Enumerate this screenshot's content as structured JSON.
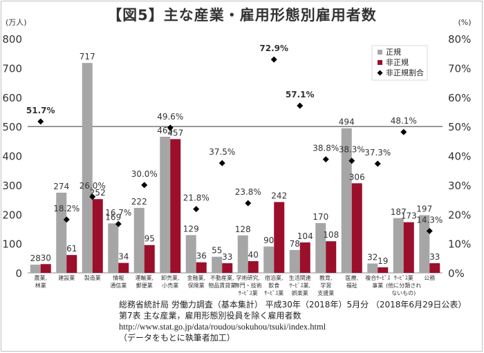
{
  "chart_data": {
    "type": "bar",
    "title": "【図5】主な産業・雇用形態別雇用者数",
    "y_left_unit": "(万人)",
    "y_right_unit": "(%)",
    "ylim": [
      0,
      800
    ],
    "y2lim": [
      0,
      80
    ],
    "y_ticks": [
      0,
      100,
      200,
      300,
      400,
      500,
      600,
      700,
      800
    ],
    "y2_ticks": [
      "0%",
      "10%",
      "20%",
      "30%",
      "40%",
      "50%",
      "60%",
      "70%",
      "80%"
    ],
    "reference_line": 500,
    "categories": [
      [
        "農業,",
        "林業"
      ],
      [
        "建設業"
      ],
      [
        "製造業"
      ],
      [
        "情報",
        "通信業"
      ],
      [
        "運輸業,",
        "郵便業"
      ],
      [
        "卸売業,",
        "小売業"
      ],
      [
        "金融業,",
        "保険業"
      ],
      [
        "不動産業,",
        "物品賃貸業"
      ],
      [
        "学術研究,",
        "専門・技術",
        "ｻｰﾋﾞｽ業"
      ],
      [
        "宿泊業,",
        "飲食",
        "ｻｰﾋﾞｽ業"
      ],
      [
        "生活関連",
        "ｻｰﾋﾞｽ業,",
        "娯楽業"
      ],
      [
        "教育,",
        "学習",
        "支援業"
      ],
      [
        "医療,",
        "福祉"
      ],
      [
        "複合ｻｰﾋﾞｽ",
        "事業"
      ],
      [
        "ｻｰﾋﾞｽ業",
        "(他に分類され",
        "ないもの)"
      ],
      [
        "公務"
      ]
    ],
    "series": [
      {
        "name": "正規",
        "type": "bar",
        "color": "#a6a6a6",
        "values": [
          28,
          274,
          717,
          169,
          222,
          465,
          129,
          55,
          128,
          90,
          78,
          170,
          494,
          32,
          187,
          197
        ]
      },
      {
        "name": "非正規",
        "type": "bar",
        "color": "#9b0f2a",
        "values": [
          30,
          61,
          252,
          34,
          95,
          457,
          36,
          33,
          40,
          242,
          104,
          108,
          306,
          19,
          173,
          33
        ]
      },
      {
        "name": "非正規割合",
        "type": "scatter",
        "marker": "diamond",
        "color": "#000000",
        "axis": "right",
        "values": [
          51.7,
          18.2,
          26.0,
          16.7,
          30.0,
          49.6,
          21.8,
          37.5,
          23.8,
          72.9,
          57.1,
          38.8,
          38.3,
          37.3,
          48.1,
          14.3
        ],
        "labels": [
          "51.7%",
          "18.2%",
          "26.0%",
          "16.7%",
          "30.0%",
          "49.6%",
          "21.8%",
          "37.5%",
          "23.8%",
          "72.9%",
          "57.1%",
          "38.8%",
          "38.3%",
          "37.3%",
          "48.1%",
          "14.3%"
        ]
      }
    ],
    "legend_position": "top-right",
    "grid": false
  },
  "source_lines": [
    "総務省統計局 労働力調査（基本集計） 平成30年（2018年）5月分 （2018年6月29日公表）",
    "第7表 主な産業，雇用形態別役員を除く雇用者数",
    "http://www.stat.go.jp/data/roudou/sokuhou/tsuki/index.html",
    "（データをもとに執筆者加工）"
  ]
}
